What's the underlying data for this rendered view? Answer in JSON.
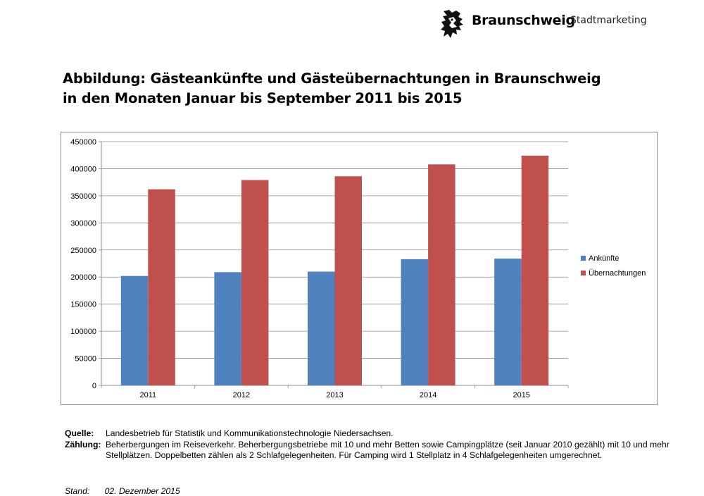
{
  "header": {
    "logo_name": "Braunschweig",
    "logo_sub": "Stadtmarketing",
    "logo_icon": "lion-icon"
  },
  "title": {
    "line1": "Abbildung: Gästeankünfte und Gästeübernachtungen in Braunschweig",
    "line2": "in den Monaten Januar bis September 2011 bis 2015"
  },
  "chart_data": {
    "type": "bar",
    "categories": [
      "2011",
      "2012",
      "2013",
      "2014",
      "2015"
    ],
    "series": [
      {
        "name": "Ankünfte",
        "color": "#4f81bd",
        "values": [
          202000,
          209000,
          210000,
          233000,
          234000
        ]
      },
      {
        "name": "Übernachtungen",
        "color": "#c0504d",
        "values": [
          362000,
          379000,
          386000,
          408000,
          424000
        ]
      }
    ],
    "ylim": [
      0,
      450000
    ],
    "yticks": [
      "0",
      "50000",
      "100000",
      "150000",
      "200000",
      "250000",
      "300000",
      "350000",
      "400000",
      "450000"
    ],
    "grid": true,
    "legend_position": "right"
  },
  "notes": {
    "source_label": "Quelle:",
    "source_text": "Landesbetrieb für Statistik und Kommunikationstechnologie Niedersachsen.",
    "count_label": "Zählung:",
    "count_text": "Beherbergungen im Reiseverkehr. Beherbergungsbetriebe mit 10 und mehr Betten sowie Campingplätze (seit Januar 2010 gezählt) mit 10 und mehr Stellplätzen. Doppelbetten zählen als 2 Schlafgelegenheiten. Für Camping wird 1 Stellplatz in 4 Schlafgelegenheiten umgerechnet.",
    "stand_label": "Stand:",
    "stand_text": "02. Dezember 2015"
  }
}
